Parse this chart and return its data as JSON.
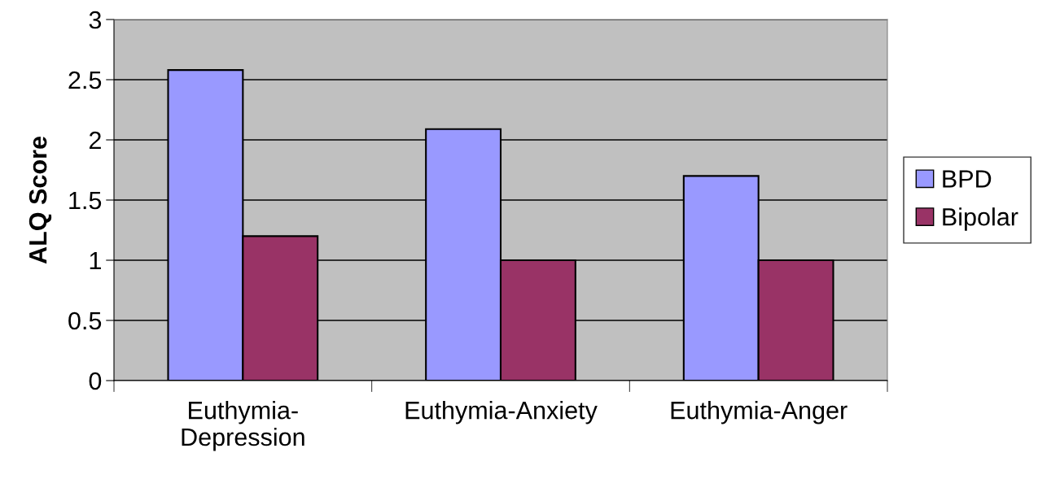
{
  "chart_data": {
    "type": "bar",
    "ylabel": "ALQ Score",
    "categories": [
      "Euthymia-\nDepression",
      "Euthymia-Anxiety",
      "Euthymia-Anger"
    ],
    "series": [
      {
        "name": "BPD",
        "color": "#9999ff",
        "values": [
          2.58,
          2.09,
          1.7
        ]
      },
      {
        "name": "Bipolar",
        "color": "#993366",
        "values": [
          1.2,
          1.0,
          1.0
        ]
      }
    ],
    "ylim": [
      0,
      3
    ],
    "yticks": [
      0,
      0.5,
      1,
      1.5,
      2,
      2.5,
      3
    ],
    "grid": "y",
    "legend": "right"
  }
}
